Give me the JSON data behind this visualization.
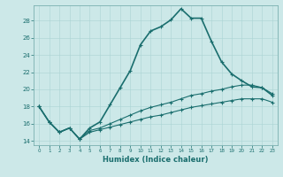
{
  "xlabel": "Humidex (Indice chaleur)",
  "background_color": "#cce8e8",
  "line_color": "#1a6e6e",
  "xlim": [
    -0.5,
    23.5
  ],
  "ylim": [
    13.5,
    29.8
  ],
  "yticks": [
    14,
    16,
    18,
    20,
    22,
    24,
    26,
    28
  ],
  "xtick_labels": [
    "0",
    "1",
    "2",
    "3",
    "4",
    "5",
    "6",
    "7",
    "8",
    "9",
    "10",
    "11",
    "12",
    "13",
    "14",
    "15",
    "16",
    "17",
    "18",
    "19",
    "20",
    "21",
    "22",
    "23"
  ],
  "series": [
    [
      18.0,
      16.2,
      15.0,
      15.5,
      14.2,
      15.5,
      16.2,
      18.2,
      20.2,
      22.2,
      25.2,
      26.8,
      27.3,
      28.1,
      29.4,
      28.3,
      28.3,
      25.6,
      23.2,
      21.8,
      21.0,
      20.3,
      20.2,
      19.3
    ],
    [
      18.0,
      16.2,
      15.0,
      15.5,
      14.2,
      15.2,
      15.5,
      16.0,
      16.5,
      17.0,
      17.5,
      17.9,
      18.2,
      18.5,
      18.9,
      19.3,
      19.5,
      19.8,
      20.0,
      20.3,
      20.5,
      20.5,
      20.2,
      19.5
    ],
    [
      18.0,
      16.2,
      15.0,
      15.5,
      14.2,
      15.0,
      15.3,
      15.6,
      15.9,
      16.2,
      16.5,
      16.8,
      17.0,
      17.3,
      17.6,
      17.9,
      18.1,
      18.3,
      18.5,
      18.7,
      18.9,
      18.9,
      18.9,
      18.5
    ]
  ]
}
